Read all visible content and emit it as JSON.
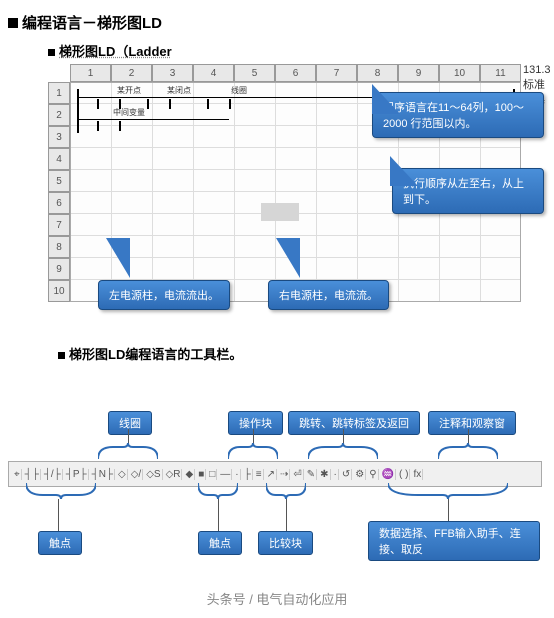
{
  "heading": "编程语言－梯形图LD",
  "sub1": "梯形图LD（Ladder",
  "sub2": "梯形图LD编程语言的工具栏。",
  "columns": [
    "1",
    "2",
    "3",
    "4",
    "5",
    "6",
    "7",
    "8",
    "9",
    "10",
    "11"
  ],
  "rows": [
    "1",
    "2",
    "3",
    "4",
    "5",
    "6",
    "7",
    "8",
    "9",
    "10"
  ],
  "rung_labels": {
    "c1": "某开点",
    "c2": "某闭点",
    "c3": "线圈",
    "c4": "中间变量"
  },
  "ruler_tail": "131.3标准  其基",
  "callouts": {
    "cols_rows": "程序语言在11～64列，100～2000 行范围以内。",
    "order": "执行顺序从左至右，从上到下。",
    "left_rail": "左电源柱，电流流出。",
    "right_rail": "右电源柱，电流流。"
  },
  "tb_labels": {
    "coil": "线圈",
    "opblock": "操作块",
    "jump": "跳转、跳转标签及返回",
    "comment": "注释和观察窗",
    "contact1": "触点",
    "contact2": "触点",
    "compare": "比较块",
    "dataselect": "数据选择、FFB输入助手、连接、取反"
  },
  "toolbar_icons": [
    "⌖",
    "┤├",
    "┤/├",
    "┤P├",
    "┤N├",
    "◇",
    "◇/",
    "◇S",
    "◇R",
    "◆",
    "■",
    "□",
    "—",
    "·",
    "├",
    "≡",
    "↗",
    "⇢",
    "⏎",
    "✎",
    "✱",
    "·",
    "↺",
    "⚙",
    "⚲",
    "♒",
    "( )",
    "fx"
  ],
  "footer": "头条号 / 电气自动化应用",
  "colors": {
    "callout_bg": "#3878c5",
    "callout_border": "#1a4a80",
    "grid": "#e8e8e8"
  }
}
